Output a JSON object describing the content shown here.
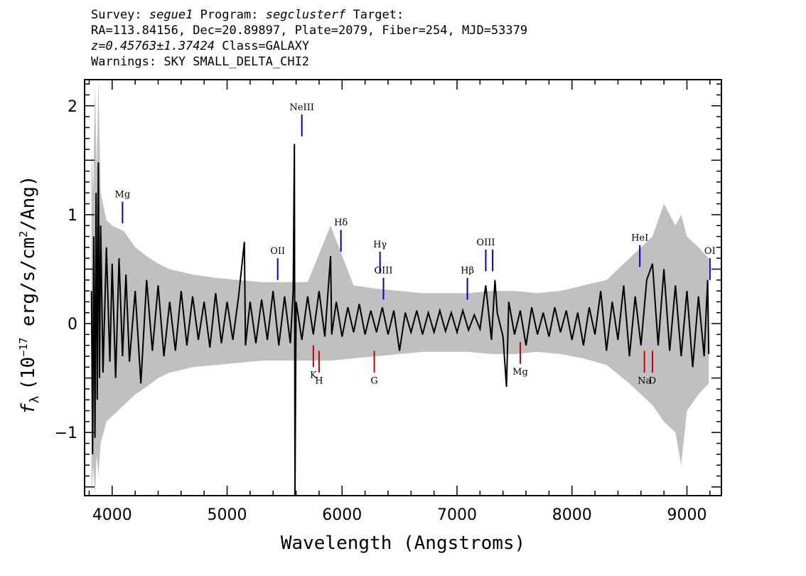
{
  "header": {
    "line1": {
      "survey_label": "Survey:",
      "survey": "segue1",
      "program_label": "Program:",
      "program": "segclusterf",
      "target_label": "Target:"
    },
    "line2": "RA=113.84156, Dec=20.89897, Plate=2079, Fiber=254, MJD=53379",
    "line3": {
      "z": "z=0.45763±1.37424",
      "class": "Class=GALAXY"
    },
    "line4": "Warnings: SKY SMALL_DELTA_CHI2"
  },
  "colors": {
    "flux": "#000000",
    "error": "#c0c0c0",
    "emission": "#0000cc",
    "absorption": "#cc0000"
  },
  "chart_data": {
    "type": "line",
    "xlabel": "Wavelength (Angstroms)",
    "ylabel": {
      "f": "f",
      "sub": "λ",
      "pre": "(10",
      "exp": "−17",
      "mid": " erg/s/cm",
      "exp2": "2",
      "post": "/Ang)"
    },
    "xlim": [
      3760,
      9300
    ],
    "ylim": [
      -1.58,
      2.24
    ],
    "xticks": [
      4000,
      5000,
      6000,
      7000,
      8000,
      9000
    ],
    "yticks": [
      {
        "v": -1,
        "label": "−1"
      },
      {
        "v": 0,
        "label": "0"
      },
      {
        "v": 1,
        "label": "1"
      },
      {
        "v": 2,
        "label": "2"
      }
    ],
    "series": [
      {
        "x": [
          3820,
          3830,
          3840,
          3850,
          3860,
          3870,
          3880,
          3890,
          3900,
          3920,
          3950,
          3980,
          4000,
          4030,
          4060,
          4090,
          4120,
          4150,
          4200,
          4250,
          4300,
          4350,
          4400,
          4450,
          4500,
          4550,
          4600,
          4650,
          4700,
          4750,
          4800,
          4850,
          4900,
          4950,
          5000,
          5050,
          5100,
          5150,
          5160,
          5200,
          5250,
          5300,
          5350,
          5400,
          5450,
          5500,
          5550,
          5575,
          5585,
          5590,
          5600,
          5650,
          5700,
          5750,
          5800,
          5850,
          5900,
          5910,
          5950,
          6000,
          6050,
          6100,
          6150,
          6200,
          6250,
          6300,
          6350,
          6400,
          6450,
          6500,
          6550,
          6600,
          6650,
          6700,
          6750,
          6800,
          6850,
          6900,
          6950,
          7000,
          7050,
          7100,
          7150,
          7200,
          7250,
          7300,
          7330,
          7350,
          7400,
          7430,
          7450,
          7500,
          7550,
          7600,
          7650,
          7700,
          7750,
          7800,
          7850,
          7900,
          7950,
          8000,
          8050,
          8100,
          8150,
          8200,
          8250,
          8300,
          8350,
          8400,
          8450,
          8500,
          8550,
          8600,
          8650,
          8700,
          8750,
          8800,
          8850,
          8900,
          8950,
          9000,
          9050,
          9100,
          9150,
          9180,
          9190
        ],
        "values": [
          0.3,
          -1.2,
          0.8,
          -1.05,
          1.2,
          -0.7,
          1.48,
          -0.5,
          0.9,
          -0.45,
          0.7,
          -0.35,
          0.55,
          -0.5,
          0.6,
          -0.3,
          0.45,
          -0.35,
          0.3,
          -0.55,
          0.4,
          -0.25,
          0.35,
          -0.3,
          0.2,
          -0.25,
          0.3,
          -0.2,
          0.25,
          -0.15,
          0.2,
          -0.22,
          0.28,
          -0.18,
          0.2,
          -0.15,
          0.25,
          0.75,
          -0.2,
          0.2,
          -0.18,
          0.22,
          -0.15,
          0.3,
          -0.2,
          0.25,
          -0.18,
          0.3,
          1.65,
          -1.58,
          0.2,
          -0.15,
          0.25,
          -0.1,
          0.3,
          -0.12,
          0.62,
          -0.1,
          0.2,
          -0.12,
          0.15,
          -0.08,
          0.18,
          -0.1,
          0.12,
          -0.08,
          0.15,
          -0.1,
          0.12,
          -0.25,
          0.1,
          -0.08,
          0.12,
          -0.1,
          0.1,
          -0.08,
          0.12,
          -0.07,
          0.1,
          -0.08,
          0.12,
          -0.06,
          0.08,
          -0.05,
          0.35,
          -0.15,
          0.4,
          0.1,
          -0.12,
          -0.58,
          0.2,
          -0.1,
          0.12,
          -0.2,
          0.15,
          -0.1,
          0.1,
          -0.12,
          0.15,
          -0.08,
          0.12,
          -0.15,
          0.1,
          -0.2,
          0.15,
          -0.1,
          0.3,
          -0.25,
          0.2,
          -0.15,
          0.35,
          -0.3,
          0.25,
          -0.2,
          0.4,
          0.55,
          -0.2,
          0.5,
          -0.25,
          0.35,
          -0.3,
          0.3,
          -0.4,
          0.25,
          -0.3,
          0.4,
          -0.28
        ]
      },
      {
        "x": [
          3820,
          3835,
          3850,
          3865,
          3880,
          3900,
          3950,
          4000,
          4100,
          4200,
          4300,
          4400,
          4500,
          4700,
          4900,
          5100,
          5300,
          5500,
          5700,
          5900,
          6100,
          6300,
          6500,
          6700,
          6900,
          7100,
          7300,
          7500,
          7700,
          7900,
          8100,
          8300,
          8500,
          8700,
          8800,
          8900,
          8950,
          9000,
          9100,
          9190
        ],
        "values": [
          1.6,
          1.2,
          2.2,
          1.4,
          2.24,
          1.2,
          0.95,
          0.9,
          0.85,
          0.7,
          0.62,
          0.55,
          0.5,
          0.45,
          0.42,
          0.4,
          0.38,
          0.38,
          0.38,
          0.9,
          0.35,
          0.32,
          0.3,
          0.28,
          0.28,
          0.28,
          0.3,
          0.3,
          0.28,
          0.3,
          0.35,
          0.4,
          0.6,
          0.8,
          1.1,
          0.9,
          1.0,
          0.8,
          0.7,
          0.6
        ],
        "lower": [
          -1.58,
          -1.3,
          -1.58,
          -1.2,
          -1.4,
          -1.1,
          -0.9,
          -0.85,
          -0.75,
          -0.65,
          -0.58,
          -0.5,
          -0.45,
          -0.4,
          -0.38,
          -0.36,
          -0.34,
          -0.34,
          -0.34,
          -0.34,
          -0.32,
          -0.3,
          -0.28,
          -0.26,
          -0.26,
          -0.26,
          -0.28,
          -0.28,
          -0.26,
          -0.28,
          -0.32,
          -0.38,
          -0.55,
          -0.75,
          -0.9,
          -1.0,
          -1.3,
          -0.8,
          -0.65,
          -0.55
        ]
      }
    ],
    "lines": [
      {
        "label": "Mg",
        "x": 4090,
        "kind": "emission",
        "y1": 0.92,
        "y2": 1.12,
        "ly": 1.16
      },
      {
        "label": "OII",
        "x": 5440,
        "kind": "emission",
        "y1": 0.4,
        "y2": 0.6,
        "ly": 0.64
      },
      {
        "label": "NeIII",
        "x": 5650,
        "kind": "emission",
        "y1": 1.72,
        "y2": 1.92,
        "ly": 1.96
      },
      {
        "label": "Hδ",
        "x": 5990,
        "kind": "emission",
        "y1": 0.66,
        "y2": 0.86,
        "ly": 0.9
      },
      {
        "label": "Hγ",
        "x": 6330,
        "kind": "emission",
        "y1": 0.46,
        "y2": 0.66,
        "ly": 0.7
      },
      {
        "label": "OIII",
        "x": 6360,
        "kind": "emission",
        "y1": 0.22,
        "y2": 0.42,
        "ly": 0.46
      },
      {
        "label": "Hβ",
        "x": 7090,
        "kind": "emission",
        "y1": 0.22,
        "y2": 0.42,
        "ly": 0.46
      },
      {
        "label": "OIII",
        "x": 7250,
        "kind": "emission",
        "y1": 0.48,
        "y2": 0.68,
        "ly": 0.72
      },
      {
        "label": "",
        "x": 7310,
        "kind": "emission",
        "y1": 0.48,
        "y2": 0.68,
        "ly": 0.72
      },
      {
        "label": "HeI",
        "x": 8590,
        "kind": "emission",
        "y1": 0.52,
        "y2": 0.72,
        "ly": 0.76
      },
      {
        "label": "OI",
        "x": 9200,
        "kind": "emission",
        "y1": 0.4,
        "y2": 0.6,
        "ly": 0.64
      },
      {
        "label": "K",
        "x": 5750,
        "kind": "absorption",
        "y1": -0.4,
        "y2": -0.2,
        "ly": -0.5
      },
      {
        "label": "H",
        "x": 5800,
        "kind": "absorption",
        "y1": -0.45,
        "y2": -0.25,
        "ly": -0.55
      },
      {
        "label": "G",
        "x": 6280,
        "kind": "absorption",
        "y1": -0.45,
        "y2": -0.25,
        "ly": -0.55
      },
      {
        "label": "Mg",
        "x": 7550,
        "kind": "absorption",
        "y1": -0.37,
        "y2": -0.17,
        "ly": -0.47
      },
      {
        "label": "Na",
        "x": 8630,
        "kind": "absorption",
        "y1": -0.45,
        "y2": -0.25,
        "ly": -0.55
      },
      {
        "label": "D",
        "x": 8700,
        "kind": "absorption",
        "y1": -0.45,
        "y2": -0.25,
        "ly": -0.55
      }
    ]
  }
}
